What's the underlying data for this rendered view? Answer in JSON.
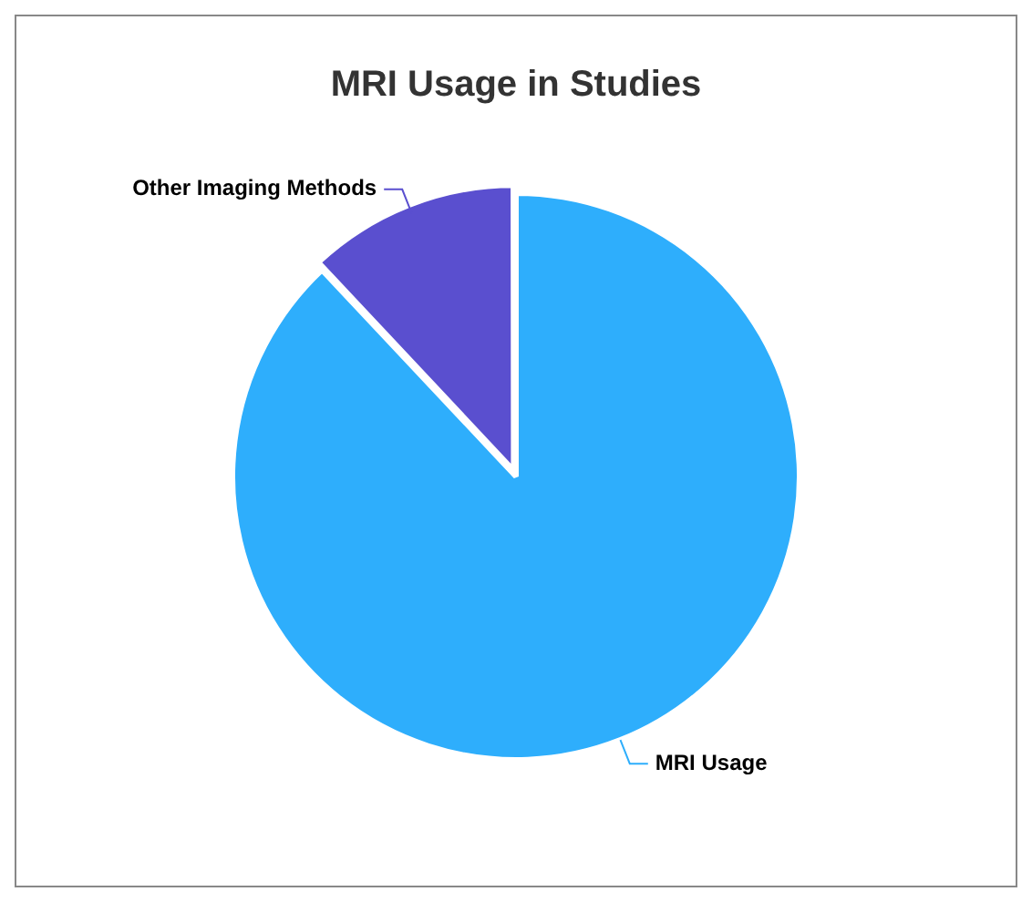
{
  "chart_data": {
    "type": "pie",
    "title": "MRI Usage in Studies",
    "categories": [
      "MRI Usage",
      "Other Imaging Methods"
    ],
    "values": [
      88,
      12
    ],
    "colors": [
      "#2eaefc",
      "#5a4fcf"
    ],
    "legend": false
  }
}
